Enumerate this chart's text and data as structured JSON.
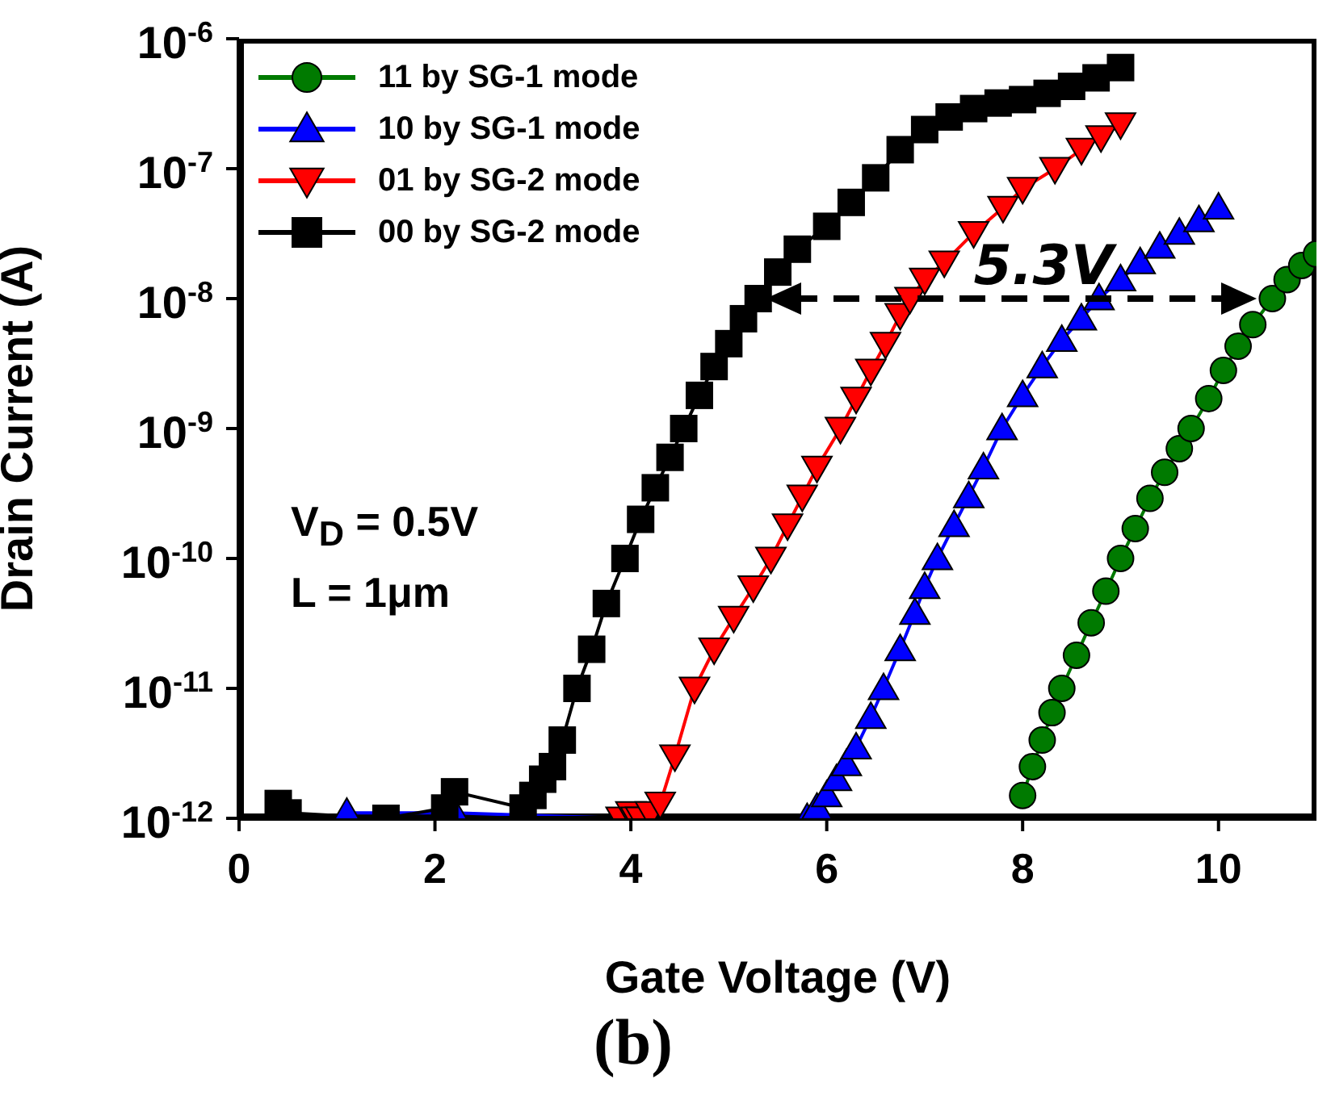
{
  "chart_data": {
    "type": "line",
    "xlabel": "Gate Voltage (V)",
    "ylabel": "Drain Current (A)",
    "xlim": [
      0,
      11
    ],
    "xticks": [
      0,
      2,
      4,
      6,
      8,
      10
    ],
    "ylim": [
      1e-12,
      1e-06
    ],
    "log": true,
    "yticks": [
      {
        "value": 1e-12,
        "label": "10$^{-12}$"
      },
      {
        "value": 1e-11,
        "label": "10$^{-11}$"
      },
      {
        "value": 1e-10,
        "label": "10$^{-10}$"
      },
      {
        "value": 1e-09,
        "label": "10$^{-9}$"
      },
      {
        "value": 1e-08,
        "label": "10$^{-8}$"
      },
      {
        "value": 1e-07,
        "label": "10$^{-7}$"
      },
      {
        "value": 1e-06,
        "label": "10$^{-6}$"
      }
    ],
    "grid": false,
    "legend": "top left",
    "series": [
      {
        "name": "11 by SG-1 mode",
        "color": "#007a00",
        "marker": "circle",
        "x": [
          8.0,
          8.1,
          8.2,
          8.3,
          8.4,
          8.55,
          8.7,
          8.85,
          9.0,
          9.15,
          9.3,
          9.45,
          9.6,
          9.72,
          9.9,
          10.05,
          10.2,
          10.35,
          10.55,
          10.7,
          10.85,
          11.0
        ],
        "values": [
          1.5e-12,
          2.5e-12,
          4e-12,
          6.5e-12,
          1e-11,
          1.8e-11,
          3.2e-11,
          5.6e-11,
          1e-10,
          1.7e-10,
          2.9e-10,
          4.6e-10,
          7e-10,
          1e-09,
          1.7e-09,
          2.8e-09,
          4.3e-09,
          6.3e-09,
          1e-08,
          1.4e-08,
          1.8e-08,
          2.2e-08
        ]
      },
      {
        "name": "10 by SG-1 mode",
        "color": "#0000ff",
        "marker": "triangle",
        "x": [
          1.1,
          2.2,
          3.9,
          5.8,
          5.9,
          6.0,
          6.1,
          6.2,
          6.3,
          6.45,
          6.58,
          6.75,
          6.9,
          7.0,
          7.13,
          7.3,
          7.45,
          7.6,
          7.79,
          8.0,
          8.2,
          8.4,
          8.6,
          8.78,
          9.0,
          9.2,
          9.4,
          9.6,
          9.8,
          10.0
        ],
        "values": [
          1.1e-12,
          1.1e-12,
          1e-12,
          1e-12,
          1.2e-12,
          1.5e-12,
          2e-12,
          2.6e-12,
          3.5e-12,
          6e-12,
          1e-11,
          2e-11,
          3.8e-11,
          6e-11,
          1e-10,
          1.8e-10,
          3e-10,
          5e-10,
          1e-09,
          1.8e-09,
          3e-09,
          4.8e-09,
          7e-09,
          1e-08,
          1.4e-08,
          1.9e-08,
          2.5e-08,
          3.2e-08,
          4e-08,
          5e-08
        ]
      },
      {
        "name": "01 by SG-2 mode",
        "color": "#ff0000",
        "marker": "triangle-down",
        "x": [
          3.9,
          4.0,
          4.05,
          4.1,
          4.2,
          4.3,
          4.45,
          4.65,
          4.85,
          5.05,
          5.25,
          5.43,
          5.6,
          5.75,
          5.9,
          6.14,
          6.3,
          6.45,
          6.6,
          6.75,
          6.85,
          7.0,
          7.2,
          7.5,
          7.8,
          8.0,
          8.33,
          8.6,
          8.8,
          9.0
        ],
        "values": [
          1e-12,
          1.1e-12,
          1e-12,
          1e-12,
          1.1e-12,
          1.3e-12,
          3e-12,
          1e-11,
          2e-11,
          3.5e-11,
          6e-11,
          1e-10,
          1.8e-10,
          3e-10,
          5e-10,
          1e-09,
          1.7e-09,
          2.8e-09,
          4.5e-09,
          7.5e-09,
          1e-08,
          1.4e-08,
          1.9e-08,
          3.2e-08,
          5e-08,
          7e-08,
          1e-07,
          1.4e-07,
          1.75e-07,
          2.2e-07
        ]
      },
      {
        "name": "00 by SG-2 mode",
        "color": "#000000",
        "marker": "square",
        "x": [
          0.4,
          0.5,
          1.5,
          2.1,
          2.2,
          2.9,
          3.0,
          3.1,
          3.2,
          3.3,
          3.45,
          3.6,
          3.75,
          3.94,
          4.1,
          4.25,
          4.4,
          4.54,
          4.7,
          4.85,
          5.0,
          5.15,
          5.3,
          5.5,
          5.7,
          6.0,
          6.25,
          6.5,
          6.75,
          7.0,
          7.25,
          7.5,
          7.75,
          8.0,
          8.25,
          8.5,
          8.75,
          9.0
        ],
        "values": [
          1.3e-12,
          1.1e-12,
          1e-12,
          1.2e-12,
          1.6e-12,
          1.2e-12,
          1.5e-12,
          2e-12,
          2.5e-12,
          4e-12,
          1e-11,
          2e-11,
          4.5e-11,
          1e-10,
          2e-10,
          3.5e-10,
          6e-10,
          1e-09,
          1.8e-09,
          3e-09,
          4.5e-09,
          7e-09,
          1e-08,
          1.6e-08,
          2.4e-08,
          3.6e-08,
          5.5e-08,
          8.5e-08,
          1.4e-07,
          2e-07,
          2.5e-07,
          2.9e-07,
          3.2e-07,
          3.4e-07,
          3.8e-07,
          4.3e-07,
          5e-07,
          6e-07
        ]
      }
    ],
    "annotations": [
      "5.3V",
      "V$_{D}$ = 0.5V",
      "L = 1μm",
      "(b)"
    ]
  }
}
